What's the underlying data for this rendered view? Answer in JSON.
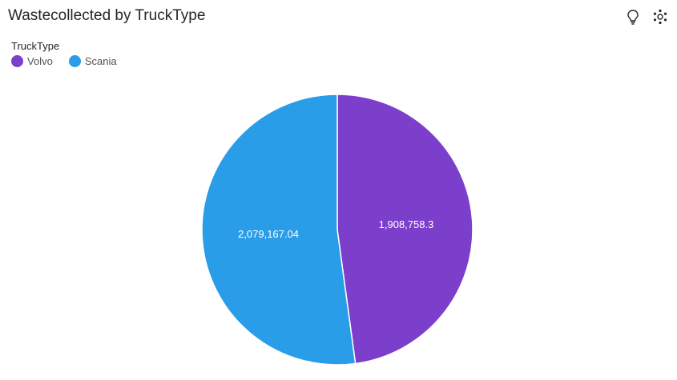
{
  "header": {
    "title": "Wastecollected by TruckType"
  },
  "toolbar": {
    "insights_icon": "lightbulb-icon",
    "explore_icon": "relationship-network-icon"
  },
  "legend": {
    "title": "TruckType"
  },
  "colors": {
    "Volvo": "#7b3fcc",
    "Scania": "#2a9de8"
  },
  "chart_data": {
    "type": "pie",
    "title": "Wastecollected by TruckType",
    "legend_title": "TruckType",
    "legend_position": "top-left",
    "slices": [
      {
        "label": "Volvo",
        "value": 1908758.3,
        "display": "1,908,758.3",
        "color": "#7b3fcc"
      },
      {
        "label": "Scania",
        "value": 2079167.04,
        "display": "2,079,167.04",
        "color": "#2a9de8"
      }
    ]
  }
}
